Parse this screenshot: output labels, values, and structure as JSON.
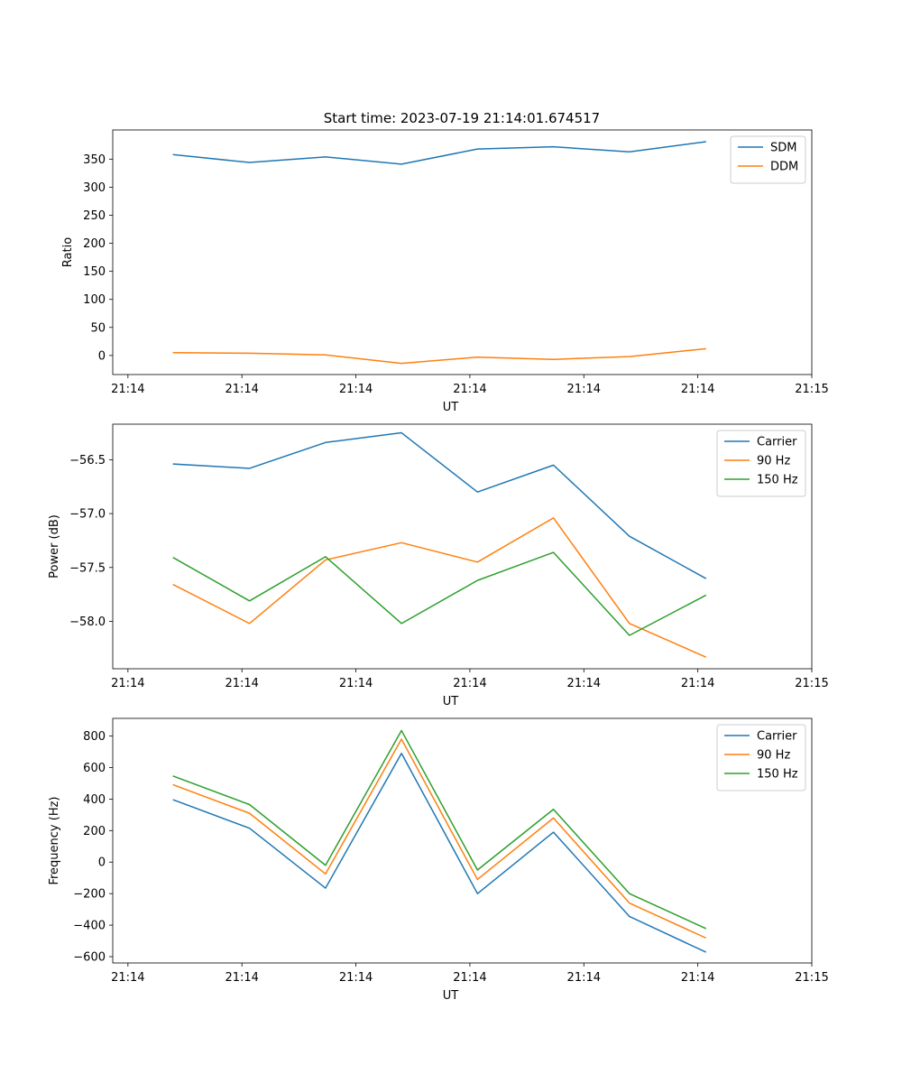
{
  "figure_title": "Start time: 2023-07-19 21:14:01.674517",
  "colors": {
    "blue": "#1f77b4",
    "orange": "#ff7f0e",
    "green": "#2ca02c"
  },
  "chart_data": [
    {
      "type": "line",
      "title": "Start time: 2023-07-19 21:14:01.674517",
      "xlabel": "UT",
      "ylabel": "Ratio",
      "x": [
        1,
        2,
        3,
        4,
        5,
        6,
        7,
        8
      ],
      "xlim": [
        0.2,
        9.4
      ],
      "xticks": [
        0.4,
        1.9,
        3.4,
        4.9,
        6.4,
        7.9,
        9.4
      ],
      "xtick_labels": [
        "21:14",
        "21:14",
        "21:14",
        "21:14",
        "21:14",
        "21:14",
        "21:15"
      ],
      "ylim": [
        -34,
        402
      ],
      "yticks": [
        0,
        50,
        100,
        150,
        200,
        250,
        300,
        350
      ],
      "ytick_labels": [
        "0",
        "50",
        "100",
        "150",
        "200",
        "250",
        "300",
        "350"
      ],
      "legend": "top-right",
      "series": [
        {
          "name": "SDM",
          "color": "#1f77b4",
          "values": [
            358,
            344,
            354,
            341,
            368,
            372,
            363,
            381
          ]
        },
        {
          "name": "DDM",
          "color": "#ff7f0e",
          "values": [
            5,
            4,
            1,
            -14,
            -3,
            -7,
            -2,
            12
          ]
        }
      ]
    },
    {
      "type": "line",
      "title": "",
      "xlabel": "UT",
      "ylabel": "Power (dB)",
      "x": [
        1,
        2,
        3,
        4,
        5,
        6,
        7,
        8
      ],
      "xlim": [
        0.2,
        9.4
      ],
      "xticks": [
        0.4,
        1.9,
        3.4,
        4.9,
        6.4,
        7.9,
        9.4
      ],
      "xtick_labels": [
        "21:14",
        "21:14",
        "21:14",
        "21:14",
        "21:14",
        "21:14",
        "21:15"
      ],
      "ylim": [
        -58.44,
        -56.17
      ],
      "yticks": [
        -58.0,
        -57.5,
        -57.0,
        -56.5
      ],
      "ytick_labels": [
        "−58.0",
        "−57.5",
        "−57.0",
        "−56.5"
      ],
      "legend": "top-right",
      "series": [
        {
          "name": "Carrier",
          "color": "#1f77b4",
          "values": [
            -56.54,
            -56.58,
            -56.34,
            -56.25,
            -56.8,
            -56.55,
            -57.21,
            -57.6
          ]
        },
        {
          "name": "90 Hz",
          "color": "#ff7f0e",
          "values": [
            -57.66,
            -58.02,
            -57.43,
            -57.27,
            -57.45,
            -57.04,
            -58.02,
            -58.33
          ]
        },
        {
          "name": "150 Hz",
          "color": "#2ca02c",
          "values": [
            -57.41,
            -57.81,
            -57.4,
            -58.02,
            -57.62,
            -57.36,
            -58.13,
            -57.76
          ]
        }
      ]
    },
    {
      "type": "line",
      "title": "",
      "xlabel": "UT",
      "ylabel": "Frequency (Hz)",
      "x": [
        1,
        2,
        3,
        4,
        5,
        6,
        7,
        8
      ],
      "xlim": [
        0.2,
        9.4
      ],
      "xticks": [
        0.4,
        1.9,
        3.4,
        4.9,
        6.4,
        7.9,
        9.4
      ],
      "xtick_labels": [
        "21:14",
        "21:14",
        "21:14",
        "21:14",
        "21:14",
        "21:14",
        "21:15"
      ],
      "ylim": [
        -640,
        912
      ],
      "yticks": [
        -600,
        -400,
        -200,
        0,
        200,
        400,
        600,
        800
      ],
      "ytick_labels": [
        "−600",
        "−400",
        "−200",
        "0",
        "200",
        "400",
        "600",
        "800"
      ],
      "legend": "top-right",
      "series": [
        {
          "name": "Carrier",
          "color": "#1f77b4",
          "values": [
            395,
            215,
            -165,
            690,
            -200,
            190,
            -345,
            -570
          ]
        },
        {
          "name": "90 Hz",
          "color": "#ff7f0e",
          "values": [
            490,
            310,
            -75,
            780,
            -110,
            280,
            -260,
            -480
          ]
        },
        {
          "name": "150 Hz",
          "color": "#2ca02c",
          "values": [
            545,
            365,
            -20,
            835,
            -50,
            335,
            -200,
            -420
          ]
        }
      ]
    }
  ]
}
